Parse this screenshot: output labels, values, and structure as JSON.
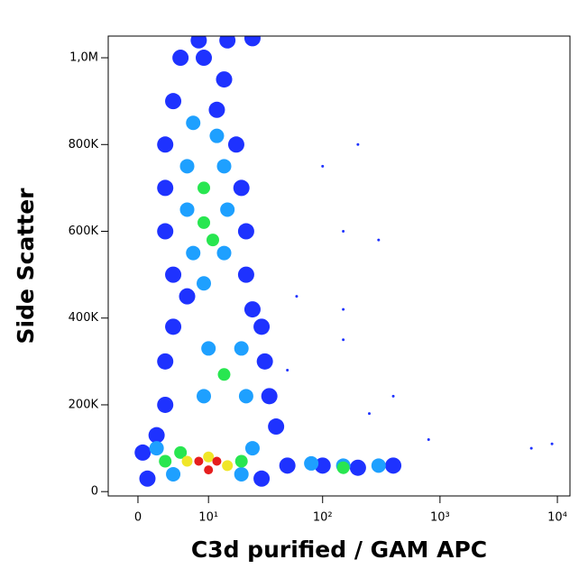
{
  "chart_data": {
    "type": "scatter",
    "xlabel": "C3d purified / GAM APC",
    "ylabel": "Side Scatter",
    "xscale": "asinh",
    "xscale_width": 5.35,
    "xlim": [
      -3.3,
      12800
    ],
    "ylim": [
      -10000,
      1050000
    ],
    "xticks": [
      0,
      {
        "value": 10,
        "label": "10¹"
      },
      {
        "value": 100,
        "label": "10²"
      },
      {
        "value": 1000,
        "label": "10³"
      },
      {
        "value": 10000,
        "label": "10⁴"
      }
    ],
    "yticks": [
      0,
      {
        "value": 200000,
        "label": "200K"
      },
      {
        "value": 400000,
        "label": "400K"
      },
      {
        "value": 600000,
        "label": "600K"
      },
      {
        "value": 800000,
        "label": "800K"
      },
      {
        "value": 1000000,
        "label": "1,0M"
      }
    ],
    "x": [
      5,
      9,
      14,
      4,
      12,
      3,
      18,
      3,
      20,
      3,
      22,
      4,
      22,
      6,
      25,
      4,
      30,
      3,
      32,
      3,
      35,
      2,
      40,
      0.5,
      50,
      100,
      200,
      400,
      1,
      30,
      8,
      15,
      25,
      7,
      12,
      6,
      14,
      6,
      15,
      7,
      14,
      9,
      10,
      20,
      9,
      22,
      2,
      25,
      80,
      150,
      300,
      4,
      20,
      9,
      9,
      11,
      14,
      3,
      20,
      150,
      5,
      6,
      15,
      10,
      8,
      10,
      12,
      100,
      200,
      150,
      300,
      60,
      150,
      400,
      800,
      6000,
      9000,
      150,
      250,
      50
    ],
    "values": [
      1000000,
      1000000,
      950000,
      900000,
      880000,
      800000,
      800000,
      700000,
      700000,
      600000,
      600000,
      500000,
      500000,
      450000,
      420000,
      380000,
      380000,
      300000,
      300000,
      200000,
      220000,
      130000,
      150000,
      90000,
      60000,
      60000,
      55000,
      60000,
      30000,
      30000,
      1040000,
      1040000,
      1045000,
      850000,
      820000,
      750000,
      750000,
      650000,
      650000,
      550000,
      550000,
      480000,
      330000,
      330000,
      220000,
      220000,
      100000,
      100000,
      65000,
      60000,
      60000,
      40000,
      40000,
      700000,
      620000,
      580000,
      270000,
      70000,
      70000,
      55000,
      90000,
      70000,
      60000,
      80000,
      70000,
      50000,
      70000,
      750000,
      800000,
      600000,
      580000,
      450000,
      350000,
      220000,
      120000,
      100000,
      110000,
      420000,
      180000,
      280000
    ],
    "colors": [
      "#1e32ff",
      "#1e32ff",
      "#1e32ff",
      "#1e32ff",
      "#1e32ff",
      "#1e32ff",
      "#1e32ff",
      "#1e32ff",
      "#1e32ff",
      "#1e32ff",
      "#1e32ff",
      "#1e32ff",
      "#1e32ff",
      "#1e32ff",
      "#1e32ff",
      "#1e32ff",
      "#1e32ff",
      "#1e32ff",
      "#1e32ff",
      "#1e32ff",
      "#1e32ff",
      "#1e32ff",
      "#1e32ff",
      "#1e32ff",
      "#1e32ff",
      "#1e32ff",
      "#1e32ff",
      "#1e32ff",
      "#1e32ff",
      "#1e32ff",
      "#1e32ff",
      "#1e32ff",
      "#1e32ff",
      "#1ea0ff",
      "#1ea0ff",
      "#1ea0ff",
      "#1ea0ff",
      "#1ea0ff",
      "#1ea0ff",
      "#1ea0ff",
      "#1ea0ff",
      "#1ea0ff",
      "#1ea0ff",
      "#1ea0ff",
      "#1ea0ff",
      "#1ea0ff",
      "#1ea0ff",
      "#1ea0ff",
      "#1ea0ff",
      "#1ea0ff",
      "#1ea0ff",
      "#1ea0ff",
      "#1ea0ff",
      "#28e650",
      "#28e650",
      "#28e650",
      "#28e650",
      "#28e650",
      "#28e650",
      "#28e650",
      "#28e650",
      "#f0e628",
      "#f0e628",
      "#f0e628",
      "#e61e1e",
      "#e61e1e",
      "#e61e1e",
      "#1e32ff",
      "#1e32ff",
      "#1e32ff",
      "#1e32ff",
      "#1e32ff",
      "#1e32ff",
      "#1e32ff",
      "#1e32ff",
      "#1e32ff",
      "#1e32ff",
      "#1e32ff",
      "#1e32ff",
      "#1e32ff"
    ],
    "sizes": [
      9,
      9,
      9,
      9,
      9,
      9,
      9,
      9,
      9,
      9,
      9,
      9,
      9,
      9,
      9,
      9,
      9,
      9,
      9,
      9,
      9,
      9,
      9,
      9,
      9,
      9,
      9,
      9,
      9,
      9,
      9,
      9,
      9,
      8,
      8,
      8,
      8,
      8,
      8,
      8,
      8,
      8,
      8,
      8,
      8,
      8,
      8,
      8,
      8,
      8,
      8,
      8,
      8,
      7,
      7,
      7,
      7,
      7,
      7,
      7,
      7,
      6,
      6,
      6,
      5,
      5,
      5,
      1.5,
      1.5,
      1.5,
      1.5,
      1.5,
      1.5,
      1.5,
      1.5,
      1.5,
      1.5,
      1.5,
      1.5,
      1.5
    ]
  }
}
